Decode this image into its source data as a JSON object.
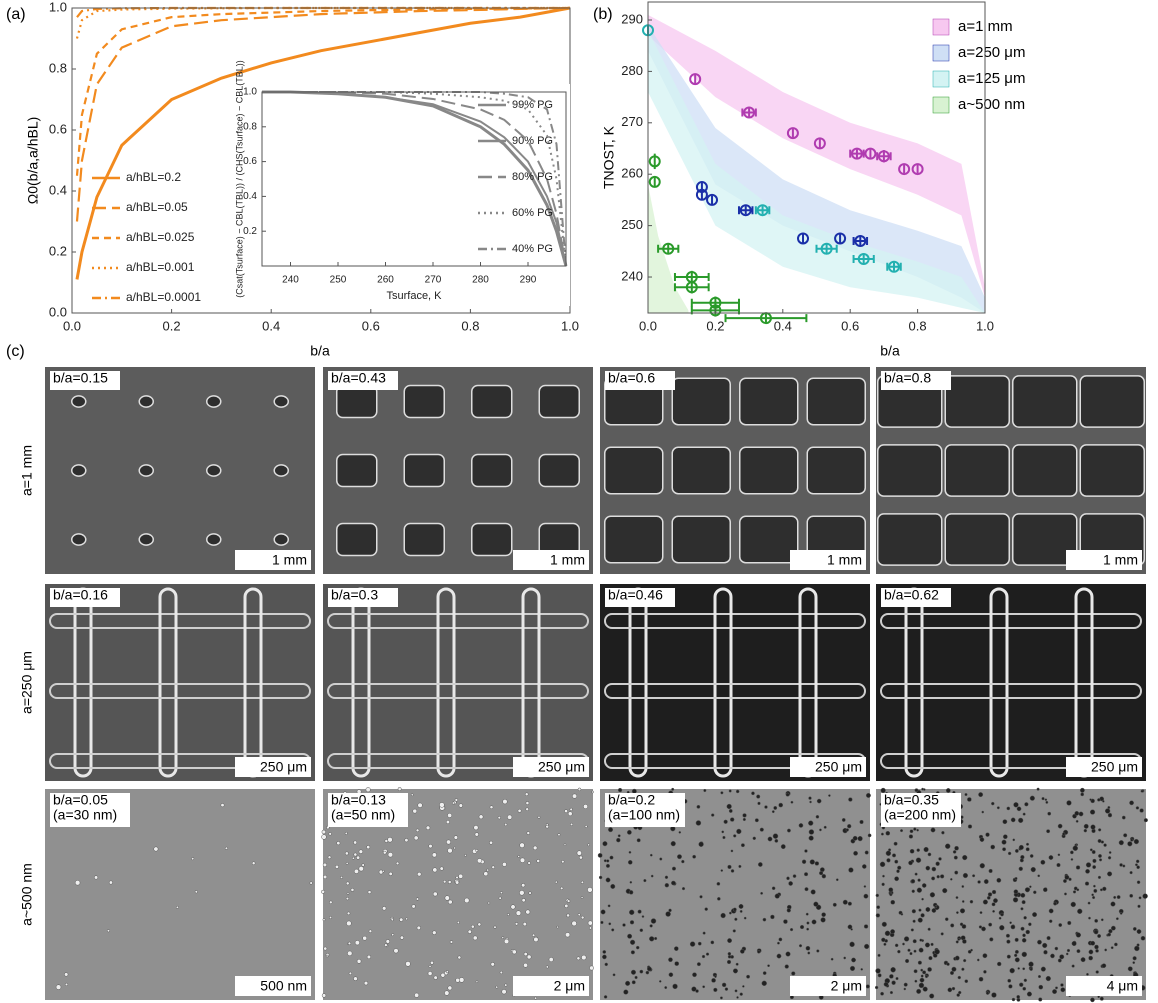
{
  "chart_data": [
    {
      "type": "line",
      "panel_label": "(a)",
      "ylabel": "Ω0(b/a,a/hBL)",
      "xlabel": "b/a",
      "xlim": [
        0,
        1
      ],
      "ylim": [
        0,
        1
      ],
      "xticks": [
        {
          "value": 0,
          "label": "0.0"
        },
        0.2,
        0.4,
        0.6,
        0.8,
        {
          "value": 1,
          "label": "1.0"
        }
      ],
      "yticks": [
        {
          "value": 0,
          "label": "0.0"
        },
        0.2,
        0.4,
        0.6,
        0.8,
        {
          "value": 1,
          "label": "1.0"
        }
      ],
      "x": [
        0.01,
        0.02,
        0.05,
        0.1,
        0.2,
        0.3,
        0.4,
        0.5,
        0.6,
        0.7,
        0.8,
        0.9,
        1.0
      ],
      "series": [
        {
          "name": "a/hBL=0.2",
          "color": "#f28a1e",
          "dash": "solid",
          "values": [
            0.11,
            0.2,
            0.38,
            0.55,
            0.7,
            0.77,
            0.82,
            0.86,
            0.89,
            0.92,
            0.95,
            0.97,
            1.0
          ]
        },
        {
          "name": "a/hBL=0.05",
          "color": "#f28a1e",
          "dash": "long-dash",
          "values": [
            0.3,
            0.5,
            0.75,
            0.87,
            0.94,
            0.96,
            0.97,
            0.98,
            0.985,
            0.99,
            0.993,
            0.997,
            1.0
          ]
        },
        {
          "name": "a/hBL=0.025",
          "color": "#f28a1e",
          "dash": "dash",
          "values": [
            0.45,
            0.65,
            0.85,
            0.93,
            0.97,
            0.98,
            0.985,
            0.99,
            0.993,
            0.995,
            0.997,
            0.998,
            1.0
          ]
        },
        {
          "name": "a/hBL=0.001",
          "color": "#f28a1e",
          "dash": "dot",
          "values": [
            0.9,
            0.96,
            0.99,
            0.995,
            0.998,
            0.999,
            1.0,
            1.0,
            1.0,
            1.0,
            1.0,
            1.0,
            1.0
          ]
        },
        {
          "name": "a/hBL=0.0001",
          "color": "#f28a1e",
          "dash": "dash-dot",
          "values": [
            0.97,
            0.99,
            0.997,
            0.999,
            1.0,
            1.0,
            1.0,
            1.0,
            1.0,
            1.0,
            1.0,
            1.0,
            1.0
          ]
        }
      ]
    },
    {
      "type": "line",
      "inset": true,
      "ylabel": "(Csat(Tsurface) − CBL(TBL)) / (CHS(Tsurface) − CBL(TBL))",
      "xlabel": "Tsurface, K",
      "xlim": [
        234,
        298
      ],
      "ylim": [
        0,
        1
      ],
      "xticks": [
        240,
        250,
        260,
        270,
        280,
        290
      ],
      "yticks": [
        0.2,
        0.4,
        0.6,
        0.8,
        {
          "value": 1,
          "label": "1.0"
        }
      ],
      "x": [
        234,
        240,
        250,
        260,
        270,
        280,
        285,
        290,
        294,
        296,
        298
      ],
      "series": [
        {
          "name": "99% PG",
          "color": "#888888",
          "dash": "solid",
          "values": [
            1,
            1,
            0.99,
            0.97,
            0.92,
            0.8,
            0.7,
            0.55,
            0.35,
            0.2,
            0
          ]
        },
        {
          "name": "90% PG",
          "color": "#888888",
          "dash": "solid",
          "values": [
            1,
            1,
            0.99,
            0.97,
            0.93,
            0.83,
            0.74,
            0.6,
            0.4,
            0.25,
            0
          ]
        },
        {
          "name": "80% PG",
          "color": "#888888",
          "dash": "long-dash",
          "values": [
            1,
            1,
            1,
            0.99,
            0.96,
            0.9,
            0.84,
            0.72,
            0.5,
            0.3,
            0
          ]
        },
        {
          "name": "60% PG",
          "color": "#888888",
          "dash": "dot",
          "values": [
            1,
            1,
            1,
            1,
            0.99,
            0.97,
            0.95,
            0.9,
            0.75,
            0.5,
            0
          ]
        },
        {
          "name": "40% PG",
          "color": "#888888",
          "dash": "dash-dot",
          "values": [
            1,
            1,
            1,
            1,
            1,
            1,
            0.99,
            0.97,
            0.9,
            0.7,
            0
          ]
        }
      ]
    },
    {
      "type": "scatter",
      "panel_label": "(b)",
      "ylabel": "TNOST, K",
      "xlabel": "b/a",
      "xlim": [
        0,
        1
      ],
      "ylim": [
        233,
        293.5
      ],
      "xticks": [
        {
          "value": 0,
          "label": "0.0"
        },
        0.2,
        0.4,
        0.6,
        0.8,
        {
          "value": 1,
          "label": "1.0"
        }
      ],
      "yticks": [
        240,
        250,
        260,
        270,
        280,
        290
      ],
      "series": [
        {
          "name": "a=1 mm",
          "color": "#b03cb0",
          "band_color": "#f7c8f0",
          "band": {
            "x": [
              0,
              0.2,
              0.4,
              0.6,
              0.8,
              0.93,
              1
            ],
            "upper": [
              291,
              284,
              276,
              270,
              266,
              262,
              238
            ],
            "lower": [
              287,
              275,
              267,
              261,
              256,
              252,
              236
            ]
          },
          "x": [
            0.14,
            0.3,
            0.43,
            0.51,
            0.62,
            0.66,
            0.7,
            0.76,
            0.8
          ],
          "values": [
            278.5,
            272,
            268,
            266,
            264,
            264,
            263.5,
            261,
            261
          ],
          "xerr": [
            null,
            0.02,
            null,
            null,
            0.02,
            null,
            0.02,
            null,
            null
          ],
          "yerr": [
            1,
            0.8,
            0.8,
            0.8,
            0.8,
            0.8,
            1.2,
            0.8,
            0.8
          ]
        },
        {
          "name": "a=250 μm",
          "color": "#1a2fa8",
          "band_color": "#cfdff5",
          "band": {
            "x": [
              0,
              0.2,
              0.4,
              0.6,
              0.8,
              0.93,
              1
            ],
            "upper": [
              289,
              269,
              259,
              253,
              249,
              246,
              236
            ],
            "lower": [
              284,
              258,
              250,
              245,
              240,
              236,
              233
            ]
          },
          "x": [
            0.16,
            0.16,
            0.19,
            0.29,
            0.46,
            0.57,
            0.63
          ],
          "values": [
            257.5,
            256,
            255,
            253,
            247.5,
            247.5,
            247
          ],
          "xerr": [
            null,
            null,
            null,
            0.02,
            null,
            null,
            0.02
          ],
          "yerr": [
            1,
            1,
            0.8,
            0.8,
            1,
            1,
            0.8
          ]
        },
        {
          "name": "a=125 μm",
          "color": "#22b0b0",
          "band_color": "#d4f3f3",
          "band": {
            "x": [
              0,
              0.2,
              0.4,
              0.6,
              0.8,
              0.93,
              1
            ],
            "upper": [
              288,
              262,
              252,
              247,
              243,
              240,
              233
            ],
            "lower": [
              276,
              250,
              242,
              238,
              236,
              234,
              233
            ]
          },
          "x": [
            0,
            0.34,
            0.53,
            0.64,
            0.73
          ],
          "values": [
            288,
            253,
            245.5,
            243.5,
            242
          ],
          "xerr": [
            null,
            0.02,
            0.03,
            0.03,
            0.02
          ],
          "yerr": [
            1,
            0.8,
            1,
            1,
            0.8
          ]
        },
        {
          "name": "a~500 nm",
          "color": "#2a9a2a",
          "band_color": "#d8f2d2",
          "band": {
            "x": [
              0,
              0.03,
              0.08,
              0.12
            ],
            "upper": [
              258,
              248,
              238,
              233.5
            ],
            "lower": [
              233,
              233,
              233,
              233
            ]
          },
          "x": [
            0.02,
            0.02,
            0.06,
            0.13,
            0.13,
            0.2,
            0.2,
            0.35
          ],
          "values": [
            262.5,
            258.5,
            245.5,
            240,
            238,
            235,
            233.5,
            232
          ],
          "xerr": [
            null,
            null,
            0.03,
            0.05,
            0.05,
            0.07,
            0.07,
            0.12
          ],
          "yerr": [
            1.5,
            1,
            1,
            1.2,
            1.2,
            1.2,
            1.2,
            1
          ]
        }
      ]
    }
  ],
  "panel_c": {
    "panel_label": "(c)",
    "row_labels": [
      "a=1 mm",
      "a=250 μm",
      "a~500 nm"
    ],
    "cells": [
      [
        {
          "label": [
            "b/a=0.15"
          ],
          "scale": "1 mm"
        },
        {
          "label": [
            "b/a=0.43"
          ],
          "scale": "1 mm"
        },
        {
          "label": [
            "b/a=0.6"
          ],
          "scale": "1 mm"
        },
        {
          "label": [
            "b/a=0.8"
          ],
          "scale": "1 mm"
        }
      ],
      [
        {
          "label": [
            "b/a=0.16"
          ],
          "scale": "250 μm"
        },
        {
          "label": [
            "b/a=0.3"
          ],
          "scale": "250 μm"
        },
        {
          "label": [
            "b/a=0.46"
          ],
          "scale": "250 μm"
        },
        {
          "label": [
            "b/a=0.62"
          ],
          "scale": "250 μm"
        }
      ],
      [
        {
          "label": [
            "b/a=0.05",
            "(a=30 nm)"
          ],
          "scale": "500 nm"
        },
        {
          "label": [
            "b/a=0.13",
            "(a=50 nm)"
          ],
          "scale": "2 μm"
        },
        {
          "label": [
            "b/a=0.2",
            "(a=100 nm)"
          ],
          "scale": "2 μm"
        },
        {
          "label": [
            "b/a=0.35",
            "(a=200 nm)"
          ],
          "scale": "4 μm"
        }
      ]
    ]
  }
}
